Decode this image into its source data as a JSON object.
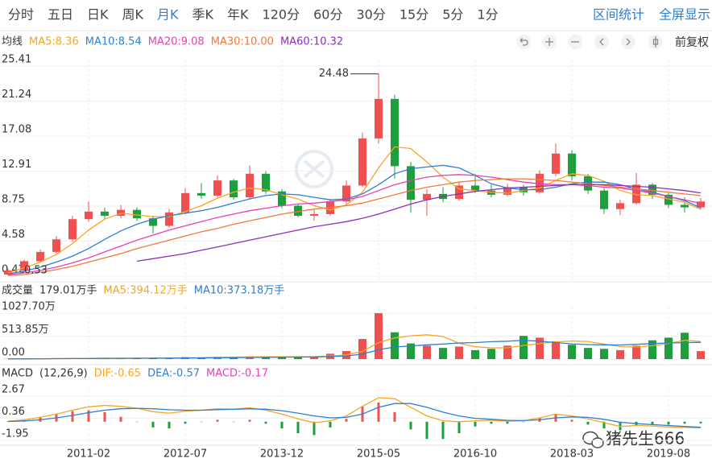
{
  "toolbar": {
    "tabs": [
      "分时",
      "五日",
      "日K",
      "周K",
      "月K",
      "季K",
      "年K",
      "120分",
      "60分",
      "30分",
      "15分",
      "5分",
      "1分"
    ],
    "active_tab": 4,
    "actions": [
      "区间统计",
      "全屏显示"
    ],
    "adjust": "前复权"
  },
  "watermark": "猪先生666",
  "chart_data": [
    {
      "type": "candlestick",
      "title": "均线",
      "up_color": "#f05050",
      "down_color": "#1e9e3c",
      "open": [
        0.6,
        1.1,
        2.2,
        3.3,
        4.8,
        7.2,
        8.1,
        7.6,
        8.3,
        7.3,
        6.4,
        8.0,
        10.3,
        10.0,
        11.8,
        9.8,
        12.6,
        10.5,
        8.8,
        7.6,
        7.8,
        9.3,
        11.2,
        16.8,
        21.5,
        13.5,
        9.5,
        10.2,
        9.6,
        11.2,
        10.6,
        10.1,
        11.0,
        10.4,
        12.6,
        15.0,
        12.3,
        10.6,
        8.4,
        9.1,
        11.3,
        10.1,
        8.9,
        8.6
      ],
      "high": [
        1.3,
        2.4,
        3.6,
        5.2,
        7.6,
        9.3,
        8.6,
        8.9,
        8.6,
        7.6,
        8.4,
        10.9,
        11.5,
        12.4,
        12.0,
        13.6,
        12.9,
        10.8,
        9.0,
        8.3,
        9.6,
        11.8,
        17.5,
        24.48,
        22.0,
        14.0,
        10.8,
        11.0,
        11.6,
        12.6,
        11.3,
        11.4,
        11.3,
        13.0,
        16.2,
        15.4,
        12.6,
        10.9,
        9.5,
        12.7,
        11.5,
        10.3,
        9.8,
        9.7
      ],
      "low": [
        0.53,
        1.0,
        2.0,
        3.1,
        4.5,
        6.9,
        7.2,
        7.3,
        7.0,
        5.5,
        6.2,
        7.8,
        9.6,
        9.8,
        9.5,
        9.6,
        10.2,
        8.5,
        7.4,
        7.0,
        7.6,
        9.0,
        11.0,
        16.2,
        12.0,
        8.0,
        7.6,
        9.2,
        9.4,
        10.3,
        9.8,
        9.9,
        10.0,
        10.2,
        12.3,
        11.8,
        10.2,
        7.8,
        7.7,
        8.9,
        9.6,
        8.5,
        8.0,
        8.4
      ],
      "close": [
        1.1,
        2.2,
        3.3,
        4.8,
        7.2,
        8.1,
        7.6,
        8.3,
        7.3,
        6.4,
        8.0,
        10.3,
        10.0,
        11.8,
        9.8,
        12.6,
        10.5,
        8.8,
        7.6,
        7.8,
        9.3,
        11.2,
        16.8,
        21.5,
        13.5,
        9.5,
        10.2,
        9.6,
        11.2,
        10.6,
        10.1,
        11.0,
        10.4,
        12.6,
        15.0,
        12.3,
        10.6,
        8.4,
        9.1,
        11.3,
        10.1,
        8.9,
        8.6,
        9.3
      ],
      "max_label": 24.48,
      "min_label": 0.53,
      "ylim": [
        0.42,
        25.41
      ],
      "yticks": [
        25.41,
        21.24,
        17.08,
        12.91,
        8.75,
        4.58,
        0.42
      ],
      "series": [
        {
          "name": "MA5:8.36",
          "color": "#f5a623",
          "values": [
            0.8,
            1.4,
            2.1,
            3.0,
            4.3,
            5.9,
            7.2,
            7.9,
            7.7,
            7.5,
            7.5,
            8.1,
            8.8,
            9.7,
            10.4,
            10.9,
            10.7,
            10.1,
            9.6,
            8.8,
            8.3,
            8.9,
            10.4,
            13.3,
            15.8,
            15.6,
            14.0,
            12.2,
            10.8,
            10.6,
            10.4,
            10.3,
            10.6,
            10.9,
            11.8,
            12.6,
            12.4,
            11.7,
            10.6,
            10.1,
            10.0,
            9.6,
            9.2,
            8.36
          ]
        },
        {
          "name": "MA10:8.54",
          "color": "#2d7fd1",
          "values": [
            0.7,
            1.0,
            1.5,
            2.1,
            2.8,
            3.7,
            4.8,
            5.8,
            6.6,
            7.2,
            7.6,
            7.9,
            8.2,
            8.6,
            9.1,
            9.6,
            10.0,
            10.2,
            10.1,
            9.8,
            9.5,
            9.6,
            10.2,
            11.3,
            12.6,
            13.2,
            13.4,
            13.6,
            13.3,
            12.4,
            11.4,
            10.9,
            10.7,
            10.7,
            11.0,
            11.4,
            11.6,
            11.6,
            11.3,
            10.8,
            10.4,
            9.9,
            9.4,
            8.54
          ]
        },
        {
          "name": "MA20:9.08",
          "color": "#e83fb7",
          "values": [
            0.6,
            0.8,
            1.1,
            1.5,
            2.0,
            2.6,
            3.3,
            4.0,
            4.7,
            5.3,
            5.9,
            6.4,
            6.9,
            7.4,
            7.8,
            8.2,
            8.5,
            8.8,
            9.0,
            9.1,
            9.3,
            9.5,
            9.9,
            10.6,
            11.3,
            11.8,
            12.2,
            12.4,
            12.5,
            12.4,
            12.2,
            11.9,
            11.6,
            11.4,
            11.3,
            11.3,
            11.2,
            11.0,
            10.9,
            10.6,
            10.3,
            9.9,
            9.5,
            9.08
          ]
        },
        {
          "name": "MA30:10.00",
          "color": "#f07a3a",
          "values": [
            0.5,
            0.6,
            0.9,
            1.2,
            1.6,
            2.1,
            2.6,
            3.1,
            3.7,
            4.2,
            4.7,
            5.2,
            5.7,
            6.1,
            6.6,
            7.0,
            7.4,
            7.8,
            8.1,
            8.4,
            8.6,
            8.8,
            9.1,
            9.6,
            10.1,
            10.6,
            11.0,
            11.3,
            11.6,
            11.8,
            11.9,
            12.0,
            12.0,
            11.9,
            11.8,
            11.6,
            11.4,
            11.2,
            11.0,
            10.8,
            10.6,
            10.4,
            10.2,
            10.0
          ]
        },
        {
          "name": "MA60:10.32",
          "color": "#8f2dbd",
          "values": [
            null,
            null,
            null,
            null,
            null,
            null,
            null,
            null,
            2.2,
            2.5,
            2.8,
            3.1,
            3.5,
            3.9,
            4.3,
            4.7,
            5.1,
            5.5,
            5.9,
            6.3,
            6.6,
            6.9,
            7.3,
            7.8,
            8.4,
            9.0,
            9.5,
            9.9,
            10.2,
            10.5,
            10.7,
            10.9,
            11.0,
            11.1,
            11.2,
            11.3,
            11.3,
            11.3,
            11.2,
            11.1,
            11.0,
            10.8,
            10.6,
            10.32
          ]
        }
      ]
    },
    {
      "type": "bar",
      "title": "成交量",
      "subtitle": "179.01万手",
      "values": [
        5,
        8,
        12,
        15,
        20,
        25,
        22,
        18,
        20,
        25,
        30,
        45,
        40,
        50,
        45,
        60,
        55,
        45,
        50,
        60,
        120,
        180,
        450,
        1027.7,
        600,
        350,
        300,
        250,
        280,
        200,
        230,
        300,
        520,
        480,
        400,
        320,
        250,
        230,
        200,
        300,
        420,
        480,
        590,
        179.01
      ],
      "ylim": [
        0,
        1027.7
      ],
      "yticks": [
        {
          "value": 1027.7,
          "label": "1027.70万"
        },
        {
          "value": 513.85,
          "label": "513.85万"
        },
        {
          "value": 0,
          "label": "0.00"
        }
      ],
      "series": [
        {
          "name": "MA5:394.12万手",
          "color": "#f5a623",
          "values": [
            5,
            6,
            8,
            10,
            12,
            16,
            19,
            20,
            21,
            22,
            23,
            28,
            32,
            38,
            42,
            48,
            51,
            51,
            51,
            54,
            66,
            93,
            172,
            367,
            475,
            521,
            545,
            505,
            356,
            276,
            252,
            252,
            306,
            346,
            386,
            404,
            394,
            336,
            280,
            270,
            300,
            350,
            420,
            394.12
          ]
        },
        {
          "name": "MA10:373.18万手",
          "color": "#2d7fd1",
          "values": [
            5,
            6,
            7,
            9,
            11,
            13,
            15,
            17,
            18,
            19,
            21,
            24,
            26,
            30,
            33,
            36,
            40,
            44,
            46,
            49,
            55,
            70,
            110,
            210,
            270,
            295,
            320,
            338,
            360,
            370,
            390,
            400,
            420,
            400,
            370,
            340,
            325,
            320,
            315,
            330,
            350,
            360,
            370,
            373.18
          ]
        }
      ]
    },
    {
      "type": "macd",
      "title": "MACD",
      "subtitle": "(12,26,9)",
      "categories": [
        null,
        null,
        null,
        null,
        null,
        "2011-02",
        null,
        null,
        null,
        null,
        null,
        "2012-07",
        null,
        null,
        null,
        null,
        null,
        "2013-12",
        null,
        null,
        null,
        null,
        null,
        "2015-05",
        null,
        null,
        null,
        null,
        null,
        "2016-10",
        null,
        null,
        null,
        null,
        null,
        "2018-03",
        null,
        null,
        null,
        null,
        null,
        "2019-08",
        null,
        null
      ],
      "histogram_name": "MACD:-0.17",
      "histogram_color": "#e83fb7",
      "values": [
        0.06,
        0.24,
        0.5,
        0.8,
        1.1,
        1.2,
        1.0,
        0.5,
        0.0,
        -0.6,
        -0.7,
        -0.2,
        0.0,
        0.2,
        0.0,
        0.2,
        -0.2,
        -0.7,
        -1.2,
        -1.4,
        -0.6,
        0.3,
        1.6,
        2.0,
        1.0,
        -0.8,
        -1.8,
        -1.8,
        -1.2,
        -0.5,
        -0.2,
        -0.2,
        -0.04,
        0.4,
        0.8,
        0.2,
        -0.3,
        -0.7,
        -0.9,
        -0.4,
        -0.3,
        -0.3,
        -0.2,
        -0.17
      ],
      "ylim": [
        -1.95,
        2.67
      ],
      "yticks": [
        2.67,
        0.36,
        -1.95
      ],
      "series": [
        {
          "name": "DIF:-0.65",
          "color": "#f5a623",
          "values": [
            0.05,
            0.2,
            0.45,
            0.8,
            1.2,
            1.55,
            1.7,
            1.6,
            1.4,
            1.05,
            0.9,
            1.1,
            1.2,
            1.35,
            1.3,
            1.45,
            1.2,
            0.8,
            0.3,
            -0.1,
            0.1,
            0.6,
            1.6,
            2.5,
            2.4,
            1.5,
            0.6,
            0.1,
            0.0,
            0.1,
            0.15,
            0.05,
            0.1,
            0.4,
            0.8,
            0.6,
            0.3,
            -0.1,
            -0.5,
            -0.4,
            -0.45,
            -0.55,
            -0.6,
            -0.65
          ]
        },
        {
          "name": "DEA:-0.57",
          "color": "#2d7fd1",
          "values": [
            0.02,
            0.08,
            0.2,
            0.4,
            0.65,
            0.95,
            1.2,
            1.35,
            1.4,
            1.35,
            1.25,
            1.2,
            1.2,
            1.25,
            1.3,
            1.35,
            1.3,
            1.15,
            0.9,
            0.6,
            0.4,
            0.45,
            0.8,
            1.5,
            1.9,
            1.9,
            1.5,
            1.0,
            0.6,
            0.35,
            0.25,
            0.15,
            0.12,
            0.2,
            0.4,
            0.5,
            0.45,
            0.25,
            -0.05,
            -0.2,
            -0.3,
            -0.4,
            -0.5,
            -0.57
          ]
        }
      ]
    }
  ]
}
